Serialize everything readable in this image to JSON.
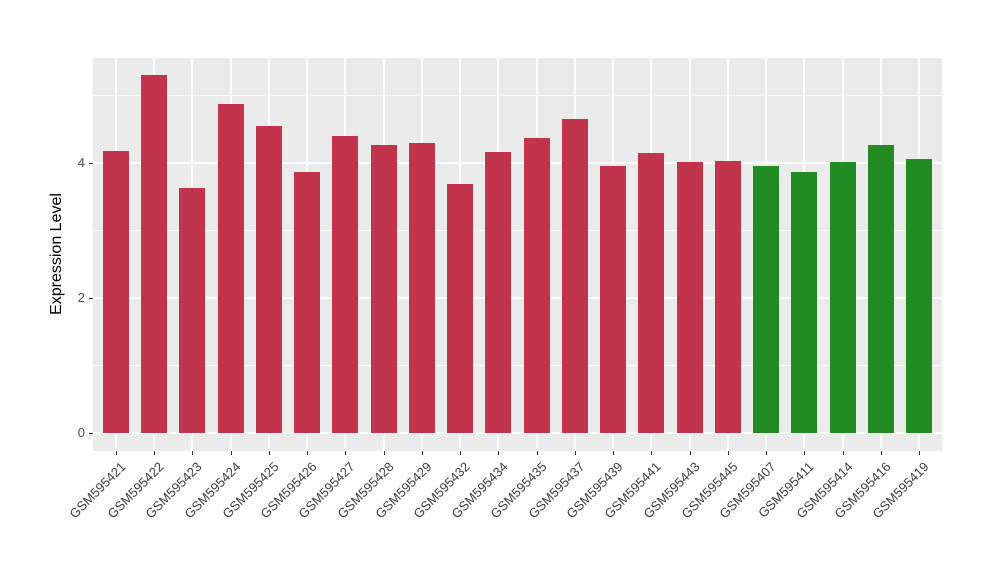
{
  "chart_data": {
    "type": "bar",
    "title": "",
    "xlabel": "",
    "ylabel": "Expression Level",
    "ylim": [
      -0.26,
      5.55
    ],
    "yticks": [
      0,
      2,
      4
    ],
    "ytick_labels": [
      "0",
      "2",
      "4"
    ],
    "minor_gridlines": [
      1,
      3,
      5
    ],
    "grid": true,
    "legend_position": "none",
    "categories": [
      "GSM595421",
      "GSM595422",
      "GSM595423",
      "GSM595424",
      "GSM595425",
      "GSM595426",
      "GSM595427",
      "GSM595428",
      "GSM595429",
      "GSM595432",
      "GSM595434",
      "GSM595435",
      "GSM595437",
      "GSM595439",
      "GSM595441",
      "GSM595443",
      "GSM595445",
      "GSM595407",
      "GSM595411",
      "GSM595414",
      "GSM595416",
      "GSM595419"
    ],
    "values": [
      4.18,
      5.3,
      3.63,
      4.87,
      4.55,
      3.87,
      4.4,
      4.27,
      4.3,
      3.69,
      4.16,
      4.37,
      4.65,
      3.96,
      4.15,
      4.01,
      4.03,
      3.96,
      3.87,
      4.01,
      4.27,
      4.06
    ],
    "bar_colors": [
      "#C2334C",
      "#C2334C",
      "#C2334C",
      "#C2334C",
      "#C2334C",
      "#C2334C",
      "#C2334C",
      "#C2334C",
      "#C2334C",
      "#C2334C",
      "#C2334C",
      "#C2334C",
      "#C2334C",
      "#C2334C",
      "#C2334C",
      "#C2334C",
      "#C2334C",
      "#228B22",
      "#228B22",
      "#228B22",
      "#228B22",
      "#228B22"
    ]
  },
  "style": {
    "panel_background": "#EBEBEB",
    "grid_color": "#FFFFFF",
    "bar_color_red": "#C2334C",
    "bar_color_green": "#228B22",
    "axis_text_color": "#4D4D4D",
    "axis_title_color": "#000000",
    "tick_mark_color": "#333333",
    "page_background": "#FFFFFF"
  }
}
